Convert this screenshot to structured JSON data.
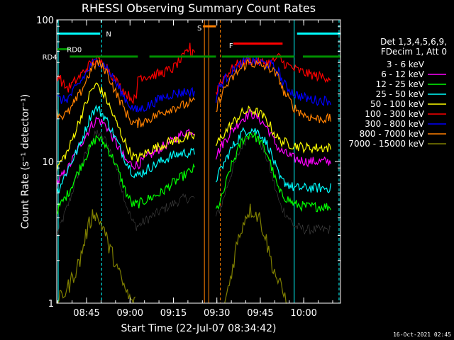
{
  "chart_data": {
    "type": "line",
    "title": "RHESSI Observing Summary Count Rates",
    "xlabel": "Start Time (22-Jul-07 08:34:42)",
    "ylabel": "Count Rate (s⁻¹ detector⁻¹)",
    "ylog": true,
    "ylim": [
      1,
      100
    ],
    "xlim_min": [
      0,
      98
    ],
    "x_ticks": [
      {
        "min": 10.3,
        "label": "08:45"
      },
      {
        "min": 25.3,
        "label": "09:00"
      },
      {
        "min": 40.3,
        "label": "09:15"
      },
      {
        "min": 55.3,
        "label": "09:30"
      },
      {
        "min": 70.3,
        "label": "09:45"
      },
      {
        "min": 85.3,
        "label": "10:00"
      }
    ],
    "y_ticks": [
      {
        "value": 1,
        "label": "1"
      },
      {
        "value": 10,
        "label": "10"
      },
      {
        "value": 100,
        "label": "100"
      }
    ],
    "legend_title": [
      "Det 1,3,4,5,6,9,",
      "FDecim 1, Att 0"
    ],
    "legend_position": "right",
    "series": [
      {
        "name": "3 - 6 keV",
        "color": "#000000",
        "x": [
          0,
          4,
          8,
          12,
          14,
          17,
          20,
          24,
          26,
          27.5,
          28,
          32,
          36,
          40,
          44,
          46,
          48,
          48.5,
          55,
          57,
          60,
          64,
          67,
          70,
          73,
          75,
          77,
          82,
          86,
          90,
          95
        ],
        "y": [
          3.0,
          5.0,
          9.0,
          14.0,
          16.0,
          14.0,
          10.0,
          5.0,
          3.8,
          3.5,
          3.5,
          4.0,
          4.5,
          5.0,
          5.5,
          5.5,
          5.5,
          null,
          4.0,
          5.0,
          8.0,
          13.0,
          16.0,
          14.0,
          10.0,
          7.0,
          5.0,
          3.5,
          3.3,
          3.3,
          3.3
        ]
      },
      {
        "name": "6 - 12 keV",
        "color": "#ff00ff",
        "x": [
          0,
          4,
          8,
          12,
          14,
          17,
          20,
          24,
          26,
          27.5,
          28,
          32,
          36,
          40,
          44,
          46,
          48,
          48.5,
          55,
          57,
          60,
          64,
          67,
          70,
          73,
          75,
          77,
          82,
          86,
          90,
          95
        ],
        "y": [
          7.0,
          9.0,
          13.0,
          18.0,
          20.0,
          18.0,
          14.0,
          10.0,
          9.5,
          9.5,
          9.5,
          11.0,
          12.5,
          14.0,
          16.0,
          16.5,
          16.5,
          null,
          11.0,
          13.0,
          16.0,
          20.0,
          22.0,
          20.0,
          17.0,
          14.0,
          12.0,
          10.5,
          10.0,
          10.0,
          10.0
        ]
      },
      {
        "name": "12 - 25 keV",
        "color": "#00ff00",
        "x": [
          0,
          4,
          8,
          12,
          14,
          17,
          20,
          24,
          26,
          27.5,
          28,
          32,
          36,
          40,
          44,
          46,
          48,
          48.5,
          55,
          57,
          60,
          64,
          67,
          70,
          73,
          75,
          77,
          82,
          86,
          90,
          95
        ],
        "y": [
          4.5,
          6.0,
          9.0,
          13.0,
          15.0,
          13.0,
          10.0,
          6.0,
          5.0,
          5.0,
          5.0,
          5.5,
          6.0,
          7.0,
          8.0,
          8.5,
          9.0,
          null,
          4.5,
          5.5,
          9.0,
          14.0,
          16.0,
          14.0,
          11.0,
          8.0,
          6.0,
          5.0,
          4.8,
          4.8,
          4.8
        ]
      },
      {
        "name": "25 - 50 keV",
        "color": "#00ffff",
        "x": [
          0,
          4,
          8,
          12,
          14,
          17,
          20,
          24,
          26,
          27.5,
          28,
          32,
          36,
          40,
          44,
          46,
          48,
          48.5,
          55,
          57,
          60,
          64,
          67,
          70,
          73,
          75,
          77,
          82,
          86,
          90,
          95
        ],
        "y": [
          6.0,
          9.0,
          13.0,
          22.0,
          24.0,
          20.0,
          15.0,
          10.0,
          8.5,
          8.0,
          8.0,
          9.0,
          10.0,
          11.0,
          11.5,
          11.5,
          11.5,
          null,
          7.5,
          9.0,
          12.0,
          16.0,
          17.0,
          16.0,
          13.0,
          10.0,
          7.5,
          6.5,
          6.5,
          6.5,
          6.5
        ]
      },
      {
        "name": "50 - 100 keV",
        "color": "#ffff00",
        "x": [
          0,
          4,
          8,
          12,
          14,
          17,
          20,
          24,
          26,
          27.5,
          28,
          32,
          36,
          40,
          44,
          46,
          48,
          48.5,
          55,
          57,
          60,
          64,
          67,
          70,
          73,
          75,
          77,
          82,
          86,
          90,
          95
        ],
        "y": [
          9.0,
          12.0,
          20.0,
          32.0,
          35.0,
          28.0,
          20.0,
          13.0,
          11.0,
          10.5,
          10.5,
          12.0,
          13.0,
          14.0,
          14.5,
          15.0,
          15.0,
          null,
          13.0,
          15.0,
          18.0,
          22.0,
          23.0,
          22.0,
          19.0,
          16.0,
          14.0,
          13.0,
          12.5,
          12.5,
          12.5
        ]
      },
      {
        "name": "100 - 300 keV",
        "color": "#ff0000",
        "x": [
          0,
          1,
          2,
          4,
          8,
          12,
          14,
          17,
          20,
          24,
          26,
          27.5,
          28,
          32,
          36,
          40,
          42,
          44,
          45,
          46,
          46.5,
          47,
          48,
          48.5,
          55,
          56,
          58,
          62,
          66,
          70,
          74,
          77,
          78,
          82,
          86,
          90,
          95
        ],
        "y": [
          40.0,
          40.0,
          35.0,
          33.0,
          40.0,
          50.0,
          52.0,
          48.0,
          38.0,
          30.0,
          28.0,
          27.0,
          40.0,
          40.0,
          42.0,
          45.0,
          50.0,
          55.0,
          60.0,
          64.0,
          55.0,
          62.0,
          60.0,
          null,
          30.0,
          35.0,
          40.0,
          48.0,
          52.0,
          50.0,
          50.0,
          55.0,
          50.0,
          45.0,
          42.0,
          40.0,
          39.0
        ]
      },
      {
        "name": "300 - 800 keV",
        "color": "#0000ff",
        "x": [
          0,
          2,
          4,
          8,
          12,
          14,
          17,
          20,
          24,
          26,
          27.5,
          28,
          32,
          36,
          40,
          44,
          46,
          48,
          48.5,
          55,
          56,
          58,
          62,
          66,
          70,
          74,
          77,
          78,
          82,
          86,
          90,
          95
        ],
        "y": [
          28.0,
          27.0,
          28.0,
          36.0,
          48.0,
          52.0,
          47.0,
          37.0,
          27.0,
          24.0,
          23.0,
          23.0,
          25.0,
          28.0,
          30.0,
          31.0,
          31.0,
          31.0,
          null,
          27.0,
          33.0,
          38.0,
          46.0,
          52.0,
          50.0,
          48.0,
          42.0,
          36.0,
          30.0,
          28.0,
          27.0,
          27.0
        ]
      },
      {
        "name": "800 - 7000 keV",
        "color": "#ff8000",
        "x": [
          0,
          2,
          4,
          8,
          12,
          14,
          17,
          20,
          24,
          26,
          27.5,
          28,
          32,
          36,
          40,
          44,
          46,
          48,
          48.5,
          55,
          56,
          58,
          62,
          66,
          70,
          74,
          77,
          78,
          82,
          86,
          90,
          95
        ],
        "y": [
          22.0,
          21.0,
          22.0,
          30.0,
          45.0,
          50.0,
          44.0,
          32.0,
          22.0,
          19.0,
          18.5,
          18.5,
          20.0,
          22.0,
          24.0,
          25.0,
          26.0,
          26.0,
          null,
          22.0,
          27.0,
          33.0,
          42.0,
          50.0,
          48.0,
          45.0,
          38.0,
          32.0,
          24.0,
          21.0,
          20.0,
          20.0
        ]
      },
      {
        "name": "7000 - 15000 keV",
        "color": "#808000",
        "x": [
          0,
          4,
          8,
          10,
          12,
          13,
          14,
          16,
          18,
          20,
          22,
          24,
          26,
          27.5,
          28,
          36,
          40,
          44,
          48,
          48.5,
          58,
          60,
          62,
          64,
          66,
          68,
          70,
          72,
          74,
          76,
          78,
          80
        ],
        "y": [
          1.0,
          1.3,
          2.0,
          3.0,
          4.0,
          4.5,
          4.0,
          3.5,
          2.5,
          2.0,
          1.5,
          1.2,
          1.0,
          1.0,
          null,
          null,
          null,
          null,
          null,
          null,
          1.0,
          1.5,
          2.5,
          3.5,
          4.5,
          4.5,
          4.0,
          3.0,
          2.0,
          1.5,
          1.2,
          1.0
        ]
      }
    ],
    "attenuator_bars": [
      {
        "label": "RD0",
        "color": "#009000",
        "level": 62,
        "segments": [
          [
            0,
            4.5
          ]
        ]
      },
      {
        "label": "RD4",
        "color": "#009000",
        "level": 55,
        "segments": [
          [
            4.5,
            28
          ],
          [
            32,
            55
          ],
          [
            57,
            82
          ],
          [
            85,
            98
          ]
        ]
      },
      {
        "label": "N",
        "color": "#00ffff",
        "level": 80,
        "segments": [
          [
            0,
            15
          ],
          [
            83,
            98
          ]
        ]
      },
      {
        "label": "S",
        "color": "#ff8000",
        "level": 90,
        "segments": [
          [
            50.5,
            55
          ]
        ]
      },
      {
        "label": "F",
        "color": "#ff0000",
        "level": 68,
        "segments": [
          [
            61,
            78
          ]
        ]
      }
    ],
    "annotation_labels": [
      {
        "text": "N",
        "color": "#00ffff",
        "min": 17.0,
        "level": 80
      },
      {
        "text": "RD0",
        "color": "#009000",
        "min": 3.5,
        "level": 62
      },
      {
        "text": "RD4",
        "color": "#009000",
        "min": -5.0,
        "level": 55
      },
      {
        "text": "S",
        "color": "#ff8000",
        "min": 48.5,
        "level": 88
      },
      {
        "text": "F",
        "color": "#ff0000",
        "min": 59.5,
        "level": 66
      }
    ],
    "vertical_markers": [
      {
        "min": 0.5,
        "color": "#00ffff",
        "style": "solid"
      },
      {
        "min": 15.5,
        "color": "#00ffff",
        "style": "dashed"
      },
      {
        "min": 82.0,
        "color": "#00ffff",
        "style": "solid"
      },
      {
        "min": 97.5,
        "color": "#00ffff",
        "style": "dashed"
      },
      {
        "min": 51.0,
        "color": "#ff8000",
        "style": "solid"
      },
      {
        "min": 52.5,
        "color": "#ff8000",
        "style": "solid"
      },
      {
        "min": 56.5,
        "color": "#ff8000",
        "style": "dashed"
      }
    ]
  },
  "footer_timestamp": "16-Oct-2021 02:45"
}
